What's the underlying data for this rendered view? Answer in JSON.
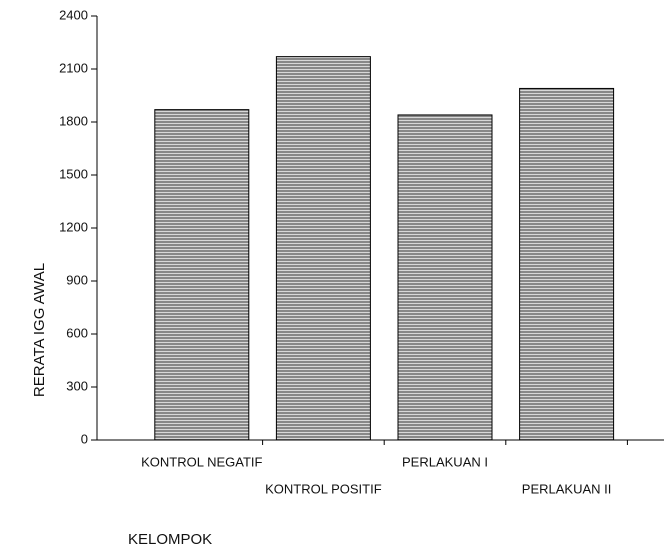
{
  "chart_data": {
    "type": "bar",
    "categories": [
      "KONTROL NEGATIF",
      "KONTROL POSITIF",
      "PERLAKUAN I",
      "PERLAKUAN II"
    ],
    "values": [
      1870,
      2170,
      1840,
      1990
    ],
    "color": "#8c8c8c",
    "ylim": [
      0,
      2400
    ],
    "yticks": [
      0,
      300,
      600,
      900,
      1200,
      1500,
      1800,
      2100,
      2400
    ],
    "ylabel": "RERATA  IGG AWAL",
    "xlabel": "KELOMPOK",
    "grid": false
  }
}
